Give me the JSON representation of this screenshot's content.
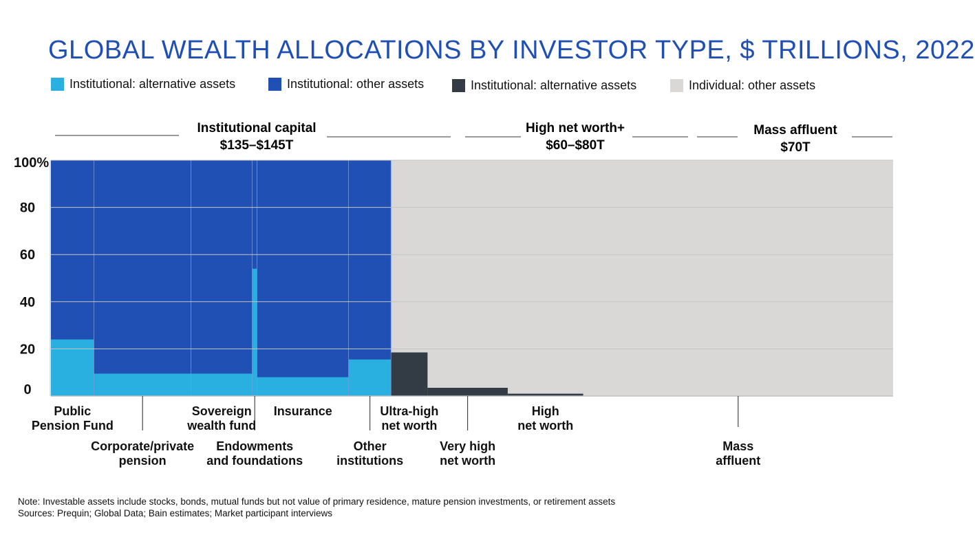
{
  "title": "GLOBAL WEALTH ALLOCATIONS BY INVESTOR TYPE, $ TRILLIONS, 2022",
  "legend": [
    {
      "label": "Institutional: alternative assets",
      "color": "#29afe0"
    },
    {
      "label": "Institutional: other assets",
      "color": "#2150b4"
    },
    {
      "label": "Institutional: alternative assets",
      "color": "#333c45"
    },
    {
      "label": "Individual: other assets",
      "color": "#d9d8d7"
    }
  ],
  "groups": [
    {
      "name": "Institutional capital",
      "value": "$135–$145T"
    },
    {
      "name": "High net worth+",
      "value": "$60–$80T"
    },
    {
      "name": "Mass affluent",
      "value": "$70T"
    }
  ],
  "chart_data": {
    "type": "marimekko",
    "ylim": [
      0,
      100
    ],
    "yticks": [
      "0",
      "20",
      "40",
      "60",
      "80",
      "100%"
    ],
    "segments": [
      {
        "label": "Public\nPension Fund",
        "width_share": 0.0512,
        "alt": 24,
        "label_row": 1,
        "kind": "institutional"
      },
      {
        "label": "Corporate/private\npension",
        "width_share": 0.1152,
        "alt": 9.5,
        "label_row": 2,
        "kind": "institutional"
      },
      {
        "label": "Sovereign\nwealth fund",
        "width_share": 0.0728,
        "alt": 9.5,
        "label_row": 1,
        "kind": "institutional"
      },
      {
        "label": "Endowments\nand foundations",
        "width_share": 0.0056,
        "alt": 54,
        "label_row": 2,
        "kind": "institutional"
      },
      {
        "label": "Insurance",
        "width_share": 0.1088,
        "alt": 8,
        "label_row": 1,
        "kind": "institutional"
      },
      {
        "label": "Other\ninstitutions",
        "width_share": 0.0504,
        "alt": 15.5,
        "label_row": 2,
        "kind": "institutional"
      },
      {
        "label": "Ultra-high\nnet worth",
        "width_share": 0.0432,
        "alt": 18.5,
        "label_row": 1,
        "kind": "individual"
      },
      {
        "label": "Very high\nnet worth",
        "width_share": 0.0952,
        "alt": 3.5,
        "label_row": 2,
        "kind": "individual"
      },
      {
        "label": "High\nnet worth",
        "width_share": 0.0896,
        "alt": 1,
        "label_row": 1,
        "kind": "individual"
      },
      {
        "label": "Mass\naffluent",
        "width_share": 0.368,
        "alt": 0,
        "label_row": 2,
        "kind": "individual"
      }
    ]
  },
  "notes": {
    "note": "Note: Investable assets include stocks, bonds, mutual funds but not value of primary residence, mature pension investments, or retirement assets",
    "sources": "Sources: Prequin; Global Data; Bain estimates; Market participant interviews"
  }
}
